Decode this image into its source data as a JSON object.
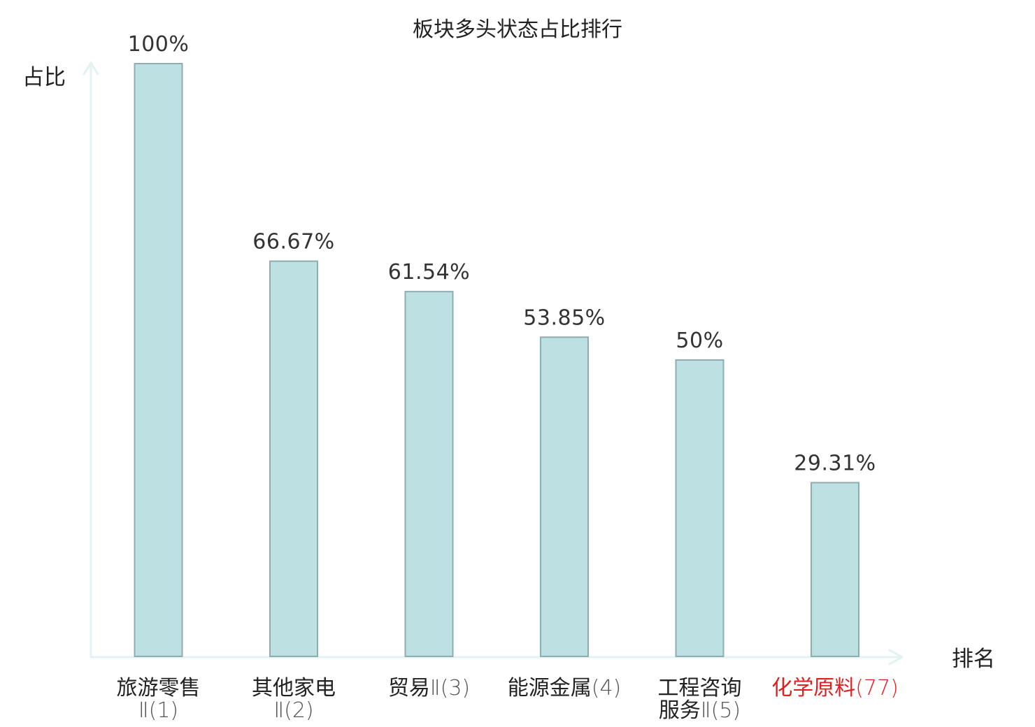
{
  "chart_data": {
    "type": "bar",
    "title": "板块多头状态占比排行",
    "ylabel": "占比",
    "xlabel": "排名",
    "ylim": [
      0,
      100
    ],
    "categories": [
      {
        "lines": [
          {
            "name": "旅游零售",
            "rank": ""
          },
          {
            "name": "",
            "rank": "Ⅱ(1)"
          }
        ],
        "highlight": false
      },
      {
        "lines": [
          {
            "name": "其他家电",
            "rank": ""
          },
          {
            "name": "",
            "rank": "Ⅱ(2)"
          }
        ],
        "highlight": false
      },
      {
        "lines": [
          {
            "name": "贸易",
            "rank": "Ⅱ(3)"
          }
        ],
        "highlight": false
      },
      {
        "lines": [
          {
            "name": "能源金属",
            "rank": "(4)"
          }
        ],
        "highlight": false
      },
      {
        "lines": [
          {
            "name": "工程咨询",
            "rank": ""
          },
          {
            "name": "服务",
            "rank": "Ⅱ(5)"
          }
        ],
        "highlight": false
      },
      {
        "lines": [
          {
            "name": "化学原料",
            "rank": "(77)"
          }
        ],
        "highlight": true
      }
    ],
    "values": [
      100,
      66.67,
      61.54,
      53.85,
      50,
      29.31
    ],
    "value_labels": [
      "100%",
      "66.67%",
      "61.54%",
      "53.85%",
      "50%",
      "29.31%"
    ],
    "grid": false,
    "legend": "none",
    "colors": {
      "bar_fill": "#bde0e3",
      "bar_stroke": "#8fadb0",
      "axis": "#e1f3f2",
      "highlight": "#e02020"
    }
  }
}
